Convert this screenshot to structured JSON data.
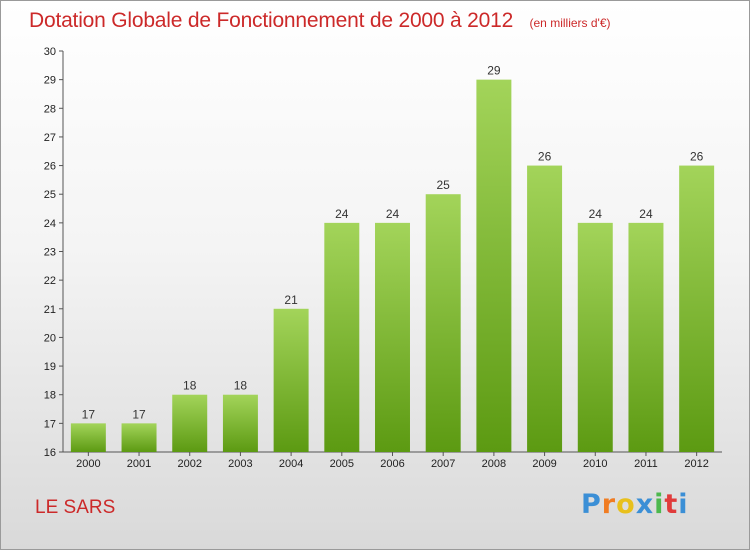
{
  "chart_data": {
    "type": "bar",
    "title": "Dotation Globale de Fonctionnement de 2000 à 2012",
    "subtitle": "(en milliers d'€)",
    "categories": [
      "2000",
      "2001",
      "2002",
      "2003",
      "2004",
      "2005",
      "2006",
      "2007",
      "2008",
      "2009",
      "2010",
      "2011",
      "2012"
    ],
    "values": [
      17,
      17,
      18,
      18,
      21,
      24,
      24,
      25,
      29,
      26,
      24,
      24,
      26
    ],
    "ylim": [
      16,
      30
    ],
    "yticks": [
      16,
      17,
      18,
      19,
      20,
      21,
      22,
      23,
      24,
      25,
      26,
      27,
      28,
      29,
      30
    ],
    "xlabel": "",
    "ylabel": "",
    "grid": false,
    "data_labels": true,
    "bar_color_top": "#a3d45a",
    "bar_color_bottom": "#5c9a12"
  },
  "footer": {
    "commune": "LE SARS",
    "brand": "Proxiti"
  },
  "colors": {
    "title": "#cc2929",
    "brand_letters": [
      "#3b8fd6",
      "#f07c22",
      "#e8c01c",
      "#3b8fd6",
      "#4db84d",
      "#e03b3b",
      "#3b8fd6"
    ]
  }
}
